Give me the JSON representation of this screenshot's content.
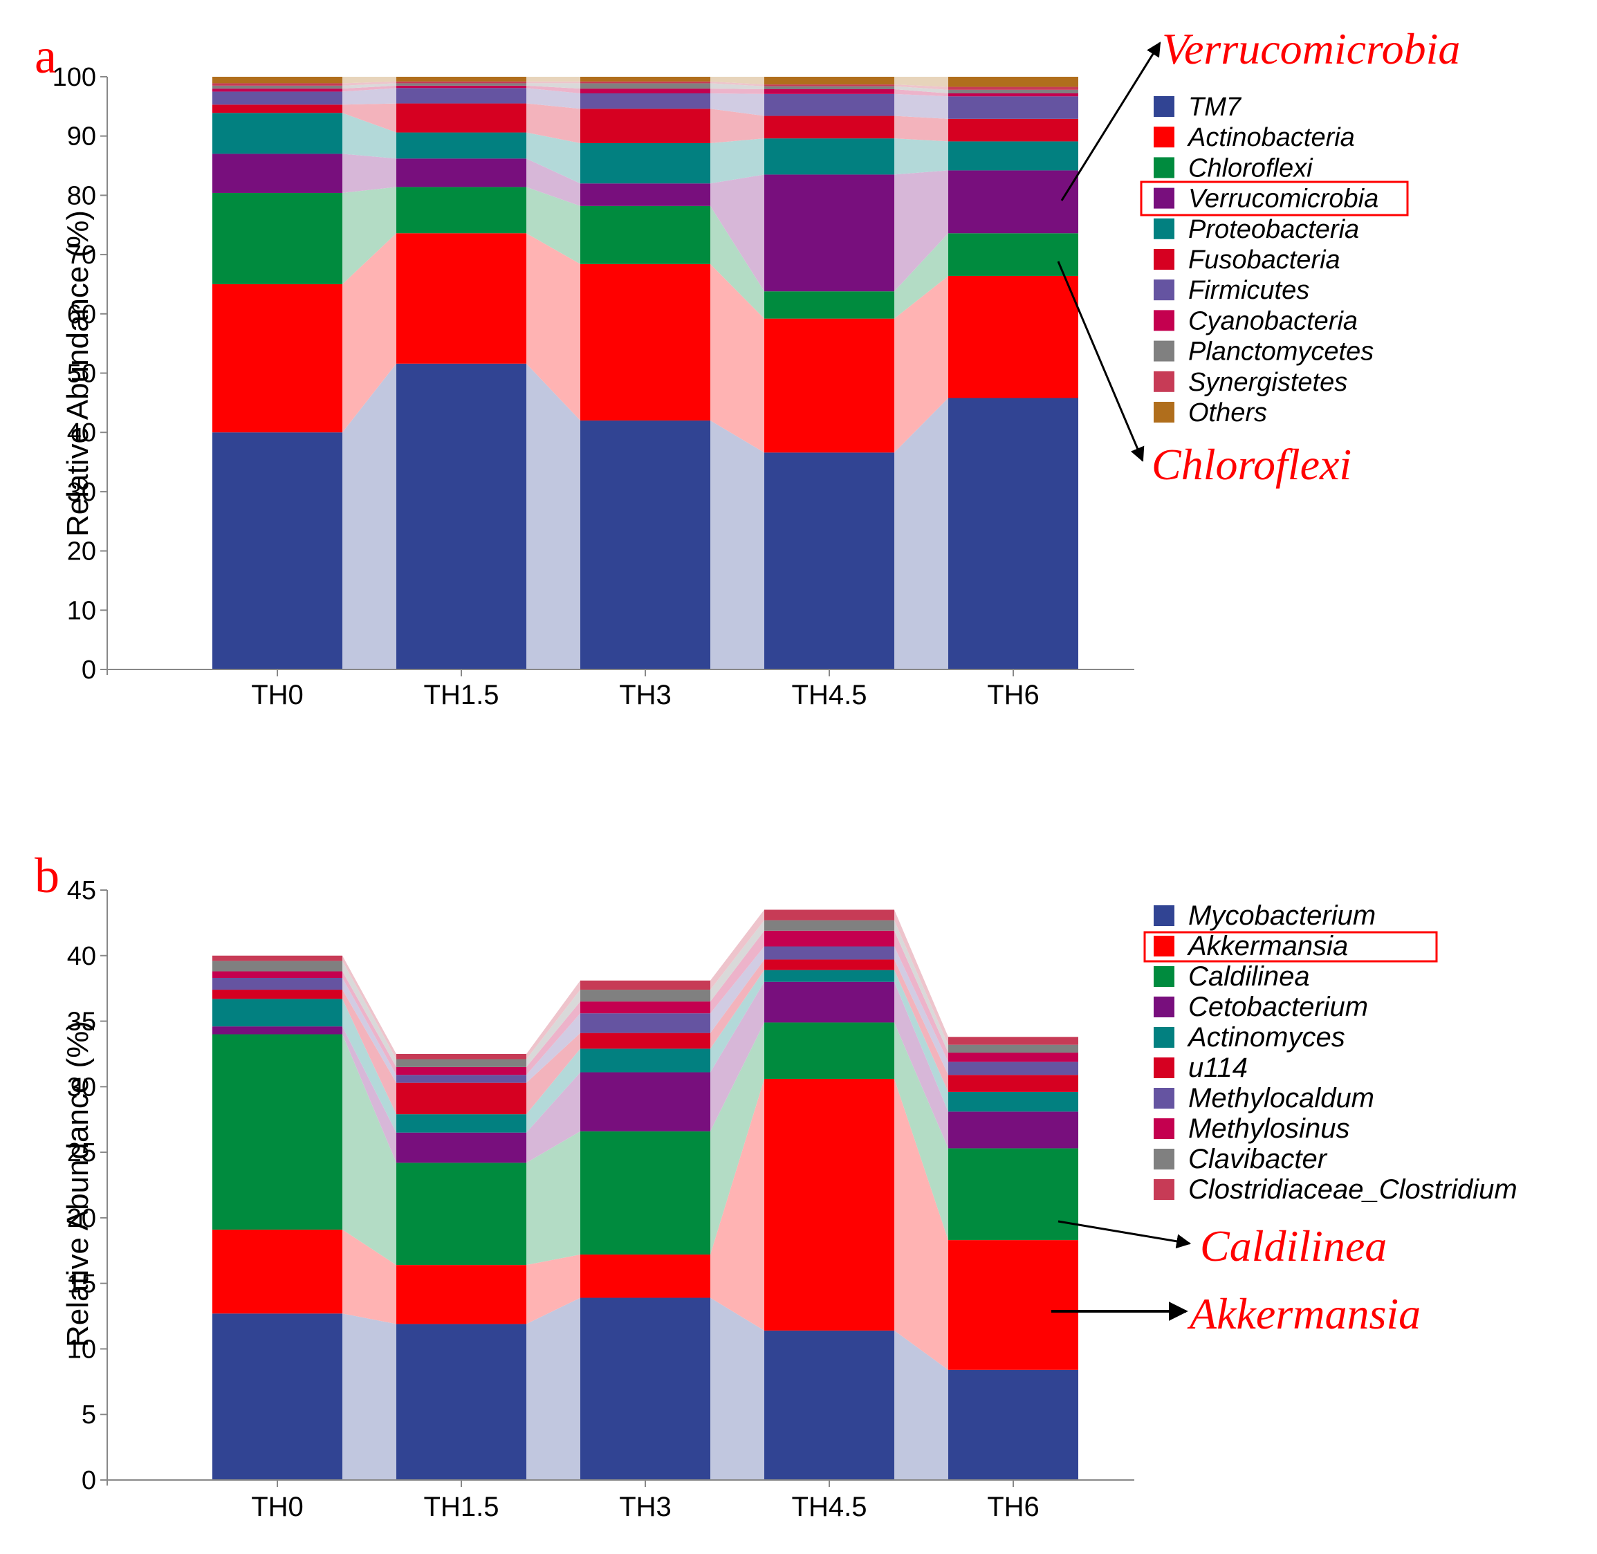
{
  "chart_data": [
    {
      "type": "bar",
      "stacked": true,
      "panel_label": "a",
      "title": "",
      "xlabel": "",
      "ylabel": "Relative Abundance (%)",
      "ylim": [
        0,
        100
      ],
      "yticks": [
        0,
        10,
        20,
        30,
        40,
        50,
        60,
        70,
        80,
        90,
        100
      ],
      "categories": [
        "TH0",
        "TH1.5",
        "TH3",
        "TH4.5",
        "TH6"
      ],
      "series": [
        {
          "name": "TM7",
          "color": "#314493",
          "values": [
            40.0,
            51.6,
            42.0,
            36.6,
            45.8
          ]
        },
        {
          "name": "Actinobacteria",
          "color": "#ff0000",
          "values": [
            25.0,
            22.0,
            26.4,
            22.6,
            20.6
          ]
        },
        {
          "name": "Chloroflexi",
          "color": "#008b3e",
          "values": [
            15.4,
            7.8,
            9.8,
            4.6,
            7.2
          ]
        },
        {
          "name": "Verrucomicrobia",
          "color": "#780f7d",
          "values": [
            6.6,
            4.8,
            3.8,
            19.7,
            10.6
          ]
        },
        {
          "name": "Proteobacteria",
          "color": "#028080",
          "values": [
            6.9,
            4.4,
            6.8,
            6.1,
            4.9
          ]
        },
        {
          "name": "Fusobacteria",
          "color": "#d60021",
          "values": [
            1.4,
            4.9,
            5.8,
            3.8,
            3.8
          ]
        },
        {
          "name": "Firmicutes",
          "color": "#6554a1",
          "values": [
            2.2,
            2.6,
            2.6,
            3.7,
            3.8
          ]
        },
        {
          "name": "Cyanobacteria",
          "color": "#c4004f",
          "values": [
            0.5,
            0.4,
            0.8,
            0.8,
            0.5
          ]
        },
        {
          "name": "Planctomycetes",
          "color": "#808080",
          "values": [
            0.5,
            0.4,
            0.9,
            0.5,
            0.6
          ]
        },
        {
          "name": "Synergistetes",
          "color": "#c73b56",
          "values": [
            0.4,
            0.3,
            0.3,
            0.3,
            0.5
          ]
        },
        {
          "name": "Others",
          "color": "#b06e1c",
          "values": [
            1.1,
            0.8,
            0.8,
            1.3,
            1.7
          ]
        }
      ],
      "legend_position": "right",
      "highlighted_legend_entry": "Verrucomicrobia",
      "annotations": [
        "Verrucomicrobia",
        "Chloroflexi"
      ]
    },
    {
      "type": "bar",
      "stacked": true,
      "panel_label": "b",
      "title": "",
      "xlabel": "",
      "ylabel": "Relative Abundance (%)",
      "ylim": [
        0,
        45
      ],
      "yticks": [
        0,
        5,
        10,
        15,
        20,
        25,
        30,
        35,
        40,
        45
      ],
      "categories": [
        "TH0",
        "TH1.5",
        "TH3",
        "TH4.5",
        "TH6"
      ],
      "series": [
        {
          "name": "Mycobacterium",
          "color": "#314493",
          "values": [
            12.7,
            11.9,
            13.9,
            11.4,
            8.4
          ]
        },
        {
          "name": "Akkermansia",
          "color": "#ff0000",
          "values": [
            6.4,
            4.5,
            3.3,
            19.2,
            9.9
          ]
        },
        {
          "name": "Caldilinea",
          "color": "#008b3e",
          "values": [
            14.9,
            7.8,
            9.4,
            4.3,
            7.0
          ]
        },
        {
          "name": "Cetobacterium",
          "color": "#780f7d",
          "values": [
            0.6,
            2.3,
            4.5,
            3.1,
            2.8
          ]
        },
        {
          "name": "Actinomyces",
          "color": "#028080",
          "values": [
            2.1,
            1.4,
            1.8,
            0.9,
            1.5
          ]
        },
        {
          "name": "u114",
          "color": "#d60021",
          "values": [
            0.7,
            2.4,
            1.2,
            0.8,
            1.3
          ]
        },
        {
          "name": "Methylocaldum",
          "color": "#6554a1",
          "values": [
            0.9,
            0.6,
            1.5,
            1.0,
            1.0
          ]
        },
        {
          "name": "Methylosinus",
          "color": "#c4004f",
          "values": [
            0.5,
            0.6,
            0.9,
            1.2,
            0.7
          ]
        },
        {
          "name": "Clavibacter",
          "color": "#808080",
          "values": [
            0.8,
            0.6,
            0.9,
            0.8,
            0.6
          ]
        },
        {
          "name": "Clostridiaceae_Clostridium",
          "color": "#c73b56",
          "values": [
            0.4,
            0.4,
            0.7,
            0.8,
            0.6
          ]
        }
      ],
      "legend_position": "right",
      "highlighted_legend_entry": "Akkermansia",
      "annotations": [
        "Caldilinea",
        "Akkermansia"
      ]
    }
  ]
}
